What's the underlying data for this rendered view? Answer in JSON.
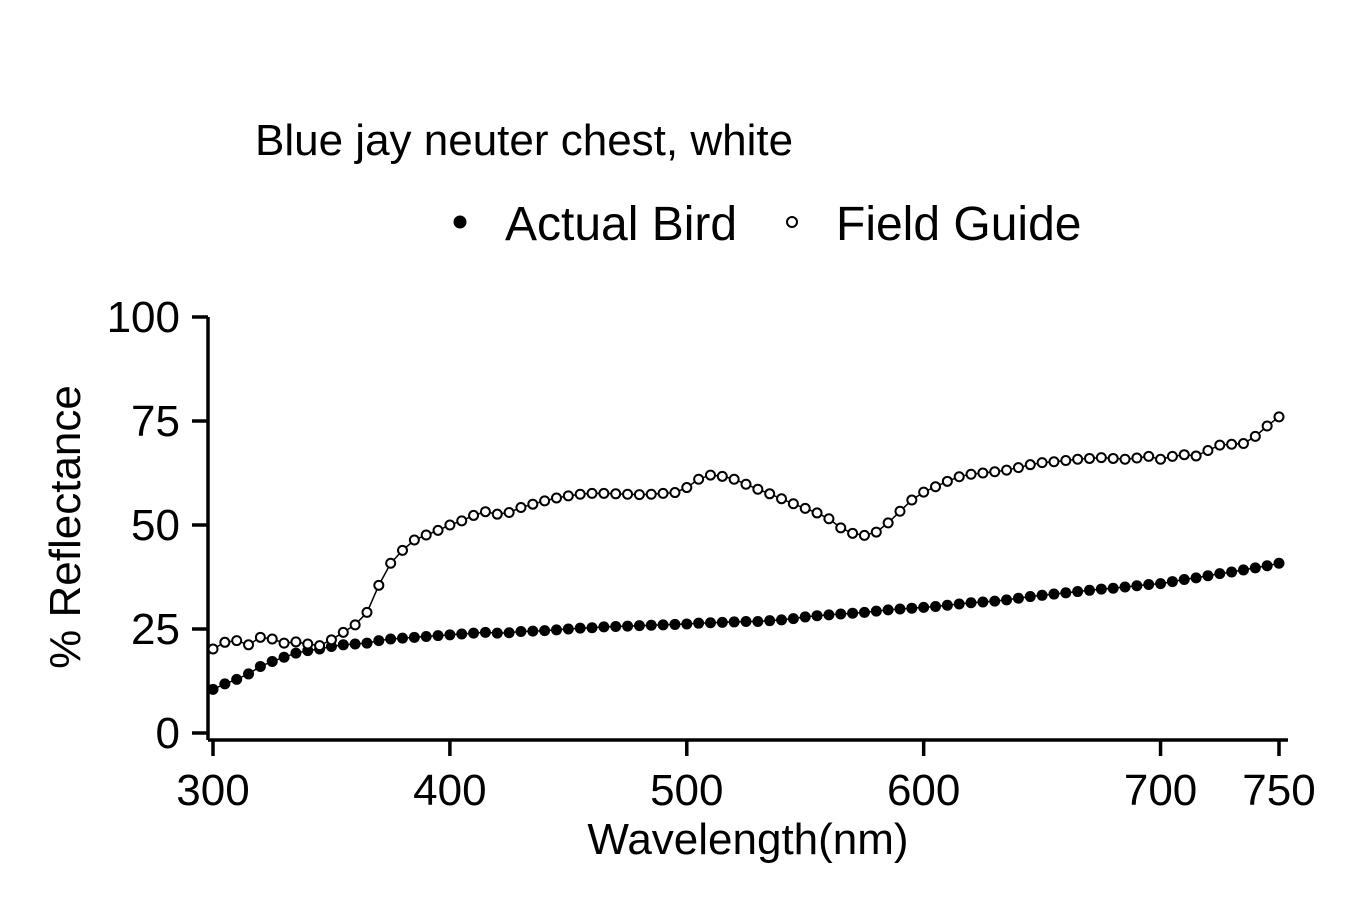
{
  "chart_data": {
    "type": "line",
    "title": "Blue jay neuter chest, white",
    "xlabel": "Wavelength(nm)",
    "ylabel": "% Reflectance",
    "xlim": [
      300,
      750
    ],
    "ylim": [
      0,
      100
    ],
    "xticks": [
      300,
      400,
      500,
      600,
      700,
      750
    ],
    "yticks": [
      0,
      25,
      50,
      75,
      100
    ],
    "legend": {
      "placement": "top",
      "items": [
        "Actual Bird",
        "Field Guide"
      ]
    },
    "grid": false,
    "series": [
      {
        "name": "Actual Bird",
        "marker": "filled-circle",
        "x": [
          300,
          305,
          310,
          315,
          320,
          325,
          330,
          335,
          340,
          345,
          350,
          355,
          360,
          365,
          370,
          375,
          380,
          385,
          390,
          395,
          400,
          405,
          410,
          415,
          420,
          425,
          430,
          435,
          440,
          445,
          450,
          455,
          460,
          465,
          470,
          475,
          480,
          485,
          490,
          495,
          500,
          505,
          510,
          515,
          520,
          525,
          530,
          535,
          540,
          545,
          550,
          555,
          560,
          565,
          570,
          575,
          580,
          585,
          590,
          595,
          600,
          605,
          610,
          615,
          620,
          625,
          630,
          635,
          640,
          645,
          650,
          655,
          660,
          665,
          670,
          675,
          680,
          685,
          690,
          695,
          700,
          705,
          710,
          715,
          720,
          725,
          730,
          735,
          740,
          745,
          750
        ],
        "y": [
          10.5,
          11.8,
          12.9,
          14.2,
          16.0,
          17.2,
          18.2,
          19.2,
          19.8,
          20.2,
          20.8,
          21.2,
          21.4,
          21.6,
          22.2,
          22.6,
          22.8,
          23.0,
          23.2,
          23.4,
          23.6,
          23.8,
          24.0,
          24.2,
          24.0,
          24.1,
          24.4,
          24.5,
          24.6,
          24.8,
          25.0,
          25.2,
          25.3,
          25.5,
          25.6,
          25.7,
          25.8,
          25.9,
          26.0,
          26.1,
          26.2,
          26.4,
          26.5,
          26.6,
          26.7,
          26.8,
          26.8,
          27.0,
          27.2,
          27.5,
          27.9,
          28.2,
          28.4,
          28.6,
          28.8,
          29.0,
          29.3,
          29.6,
          29.8,
          30.0,
          30.2,
          30.4,
          30.7,
          31.0,
          31.3,
          31.5,
          31.7,
          32.0,
          32.4,
          32.8,
          33.1,
          33.4,
          33.7,
          34.0,
          34.3,
          34.6,
          34.8,
          35.1,
          35.4,
          35.7,
          35.9,
          36.4,
          36.9,
          37.3,
          37.8,
          38.3,
          38.7,
          39.2,
          39.7,
          40.2,
          40.8
        ]
      },
      {
        "name": "Field Guide",
        "marker": "open-circle",
        "x": [
          300,
          305,
          310,
          315,
          320,
          325,
          330,
          335,
          340,
          345,
          350,
          355,
          360,
          365,
          370,
          375,
          380,
          385,
          390,
          395,
          400,
          405,
          410,
          415,
          420,
          425,
          430,
          435,
          440,
          445,
          450,
          455,
          460,
          465,
          470,
          475,
          480,
          485,
          490,
          495,
          500,
          505,
          510,
          515,
          520,
          525,
          530,
          535,
          540,
          545,
          550,
          555,
          560,
          565,
          570,
          575,
          580,
          585,
          590,
          595,
          600,
          605,
          610,
          615,
          620,
          625,
          630,
          635,
          640,
          645,
          650,
          655,
          660,
          665,
          670,
          675,
          680,
          685,
          690,
          695,
          700,
          705,
          710,
          715,
          720,
          725,
          730,
          735,
          740,
          745,
          750
        ],
        "y": [
          20.2,
          21.8,
          22.2,
          21.2,
          23.0,
          22.6,
          21.6,
          21.9,
          21.4,
          21.0,
          22.4,
          24.2,
          26.0,
          29.0,
          35.5,
          40.8,
          43.9,
          46.4,
          47.6,
          48.7,
          50.0,
          51.0,
          52.3,
          53.2,
          52.6,
          53.0,
          54.2,
          55.0,
          55.8,
          56.5,
          57.0,
          57.4,
          57.6,
          57.6,
          57.5,
          57.4,
          57.3,
          57.4,
          57.6,
          57.8,
          59.0,
          61.0,
          62.0,
          61.7,
          61.0,
          59.8,
          58.6,
          57.5,
          56.3,
          55.1,
          54.0,
          52.9,
          51.5,
          49.3,
          48.0,
          47.5,
          48.3,
          50.5,
          53.3,
          56.0,
          57.9,
          59.2,
          60.5,
          61.6,
          62.2,
          62.5,
          62.8,
          63.2,
          63.8,
          64.5,
          65.0,
          65.2,
          65.5,
          65.8,
          66.0,
          66.2,
          66.0,
          65.8,
          66.1,
          66.5,
          65.8,
          66.5,
          66.9,
          66.6,
          67.9,
          69.2,
          69.4,
          69.6,
          71.3,
          73.8,
          76.0
        ]
      }
    ]
  }
}
